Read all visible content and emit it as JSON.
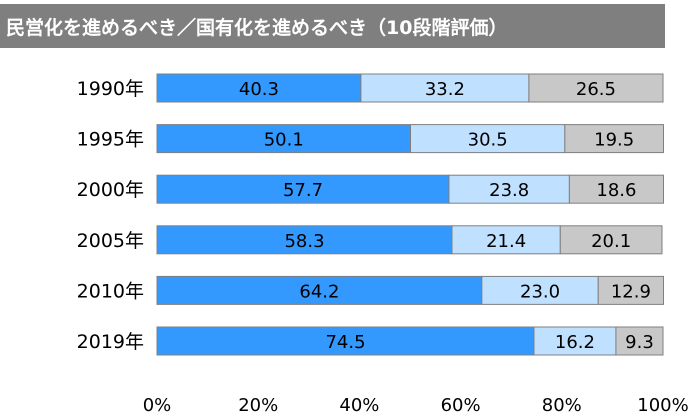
{
  "chart_data": {
    "type": "bar",
    "orientation": "horizontal",
    "stacked": true,
    "title": "民営化を進めるべき／国有化を進めるべき（10段階評価）",
    "categories": [
      "1990年",
      "1995年",
      "2000年",
      "2005年",
      "2010年",
      "2019年"
    ],
    "series": [
      {
        "values": [
          40.3,
          50.1,
          57.7,
          58.3,
          64.2,
          74.5
        ]
      },
      {
        "values": [
          33.2,
          30.5,
          23.8,
          21.4,
          23.0,
          16.2
        ]
      },
      {
        "values": [
          26.5,
          19.5,
          18.6,
          20.1,
          12.9,
          9.3
        ]
      }
    ],
    "xlim": [
      0,
      100
    ],
    "xticks": [
      "0%",
      "20%",
      "40%",
      "60%",
      "80%",
      "100%"
    ],
    "legend": "none",
    "grid": false,
    "colors": [
      "#3399ff",
      "#bfe0ff",
      "#c8c8c8"
    ],
    "border_color": "#7f7f7f"
  }
}
